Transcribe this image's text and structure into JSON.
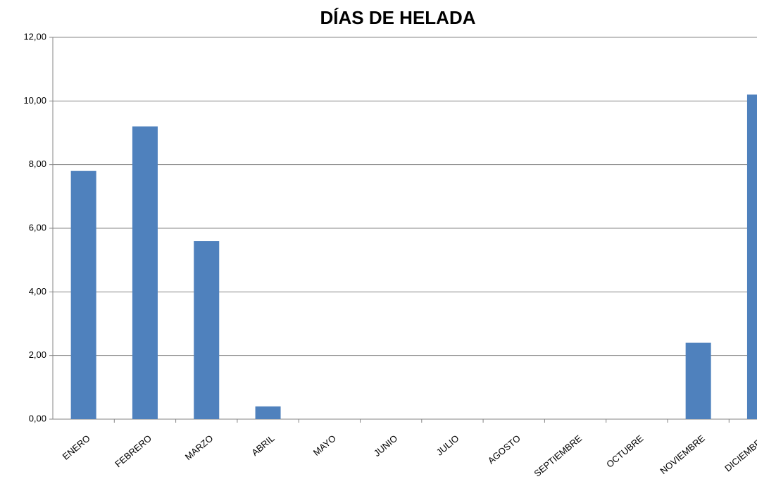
{
  "chart_data": {
    "type": "bar",
    "title": "DÍAS DE HELADA",
    "categories": [
      "ENERO",
      "FEBRERO",
      "MARZO",
      "ABRIL",
      "MAYO",
      "JUNIO",
      "JULIO",
      "AGOSTO",
      "SEPTIEMBRE",
      "OCTUBRE",
      "NOVIEMBRE",
      "DICIEMBRE"
    ],
    "values": [
      7.8,
      9.2,
      5.6,
      0.4,
      0,
      0,
      0,
      0,
      0,
      0,
      2.4,
      10.2
    ],
    "color": "#4f81bd",
    "ylim": [
      0,
      12
    ],
    "yticks": [
      {
        "value": 0,
        "label": "0,00"
      },
      {
        "value": 2,
        "label": "2,00"
      },
      {
        "value": 4,
        "label": "4,00"
      },
      {
        "value": 6,
        "label": "6,00"
      },
      {
        "value": 8,
        "label": "8,00"
      },
      {
        "value": 10,
        "label": "10,00"
      },
      {
        "value": 12,
        "label": "12,00"
      }
    ],
    "grid": true
  }
}
